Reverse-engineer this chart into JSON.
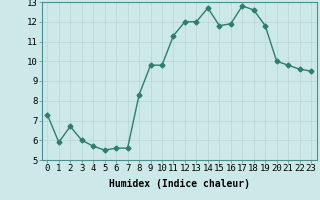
{
  "x": [
    0,
    1,
    2,
    3,
    4,
    5,
    6,
    7,
    8,
    9,
    10,
    11,
    12,
    13,
    14,
    15,
    16,
    17,
    18,
    19,
    20,
    21,
    22,
    23
  ],
  "y": [
    7.3,
    5.9,
    6.7,
    6.0,
    5.7,
    5.5,
    5.6,
    5.6,
    8.3,
    9.8,
    9.8,
    11.3,
    12.0,
    12.0,
    12.7,
    11.8,
    11.9,
    12.8,
    12.6,
    11.8,
    10.0,
    9.8,
    9.6,
    9.5
  ],
  "line_color": "#2e7d6e",
  "marker": "D",
  "marker_size": 2.5,
  "bg_color": "#cce8e8",
  "grid_color": "#b8d4d4",
  "xlabel": "Humidex (Indice chaleur)",
  "ylim": [
    5,
    13
  ],
  "xlim": [
    -0.5,
    23.5
  ],
  "yticks": [
    5,
    6,
    7,
    8,
    9,
    10,
    11,
    12,
    13
  ],
  "xticks": [
    0,
    1,
    2,
    3,
    4,
    5,
    6,
    7,
    8,
    9,
    10,
    11,
    12,
    13,
    14,
    15,
    16,
    17,
    18,
    19,
    20,
    21,
    22,
    23
  ],
  "xlabel_fontsize": 7,
  "tick_fontsize": 6.5,
  "line_width": 1.0
}
